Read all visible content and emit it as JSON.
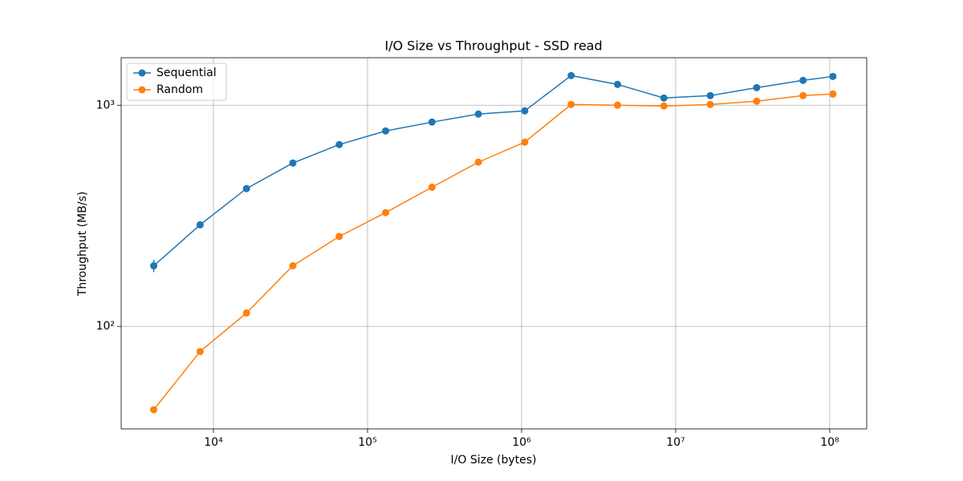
{
  "chart_data": {
    "type": "line",
    "title": "I/O Size vs Throughput - SSD read",
    "x_label": "I/O Size (bytes)",
    "y_label": "Throughput (MB/s)",
    "x": [
      4096,
      8192,
      16384,
      32768,
      65536,
      131072,
      262144,
      524288,
      1048576,
      2097152,
      4194304,
      8388608,
      16777216,
      33554432,
      67108864,
      104857600
    ],
    "series": [
      {
        "name": "Sequential",
        "color": "#1f77b4",
        "values": [
          188,
          288,
          420,
          548,
          664,
          765,
          839,
          912,
          943,
          1362,
          1242,
          1078,
          1105,
          1201,
          1295,
          1350
        ],
        "errors": [
          12,
          3,
          5,
          6,
          5,
          5,
          5,
          5,
          5,
          10,
          8,
          5,
          5,
          5,
          5,
          10
        ]
      },
      {
        "name": "Random",
        "color": "#ff7f0e",
        "values": [
          42,
          77,
          115,
          188,
          255,
          327,
          426,
          553,
          681,
          1008,
          1000,
          992,
          1008,
          1043,
          1105,
          1124
        ],
        "errors": [
          1,
          1,
          2,
          3,
          3,
          3,
          4,
          5,
          5,
          8,
          8,
          8,
          10,
          10,
          10,
          20
        ]
      }
    ],
    "x_log": true,
    "y_log": true,
    "xlim": [
      2518,
      173780000
    ],
    "ylim": [
      34.4,
      1640
    ],
    "xticks": [
      {
        "value": 10000,
        "label": "10⁴"
      },
      {
        "value": 100000,
        "label": "10⁵"
      },
      {
        "value": 1000000,
        "label": "10⁶"
      },
      {
        "value": 10000000,
        "label": "10⁷"
      },
      {
        "value": 100000000,
        "label": "10⁸"
      }
    ],
    "yticks": [
      {
        "value": 100,
        "label": "10²"
      },
      {
        "value": 1000,
        "label": "10³"
      }
    ],
    "grid": true,
    "legend_position": "upper-left"
  }
}
